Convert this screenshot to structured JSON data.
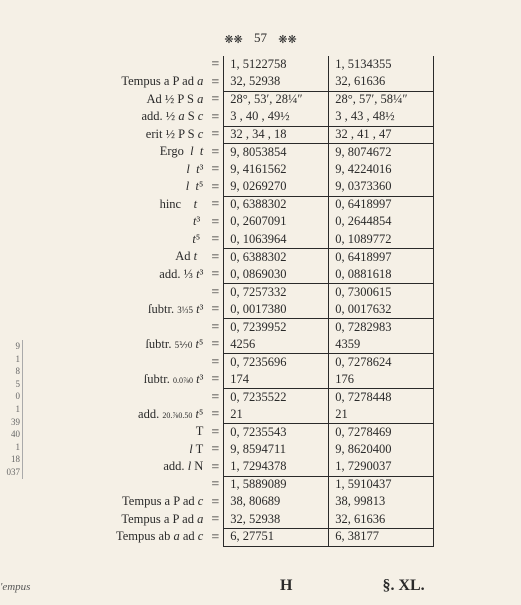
{
  "page_number": "57",
  "decoration": "❋❋",
  "rows": [
    {
      "cls": "",
      "label": "",
      "valA": "1, 5122758",
      "valB": "1, 5134355"
    },
    {
      "cls": "botsep",
      "label": "Tempus a P ad <span class='it'>a</span>",
      "valA": "32, 52938",
      "valB": "32, 61636"
    },
    {
      "cls": "",
      "label": "Ad ½ P S <span class='it'>a</span>",
      "valA": "28°, 53′, 28¼″",
      "valB": "28°, 57′, 58¼″"
    },
    {
      "cls": "botsep",
      "label": "add. ½ <span class='it'>a</span> S <span class='it'>c</span>",
      "valA": "3 , 40 , 49½",
      "valB": "3 , 43 , 48½"
    },
    {
      "cls": "botsep",
      "label": "erit ½ P S <span class='it'>c</span>",
      "valA": "32 , 34 , 18",
      "valB": "32 , 41 , 47"
    },
    {
      "cls": "",
      "label": "Ergo&nbsp;&nbsp;<span class='it'>l&nbsp;&nbsp;t</span>",
      "valA": "9, 8053854",
      "valB": "9, 8074672"
    },
    {
      "cls": "",
      "label": "<span class='it'>l&nbsp;&nbsp;t</span>³",
      "valA": "9, 4161562",
      "valB": "9, 4224016"
    },
    {
      "cls": "botsep",
      "label": "<span class='it'>l&nbsp;&nbsp;t</span>⁵",
      "valA": "9, 0269270",
      "valB": "9, 0373360"
    },
    {
      "cls": "",
      "label": "hinc&nbsp;&nbsp;&nbsp;&nbsp;<span class='it'>t</span>&nbsp;&nbsp;",
      "valA": "0, 6388302",
      "valB": "0, 6418997"
    },
    {
      "cls": "",
      "label": "<span class='it'>t</span>³&nbsp;",
      "valA": "0, 2607091",
      "valB": "0, 2644854"
    },
    {
      "cls": "botsep",
      "label": "<span class='it'>t</span>⁵&nbsp;",
      "valA": "0, 1063964",
      "valB": "0, 1089772"
    },
    {
      "cls": "",
      "label": "Ad <span class='it'>t</span>&nbsp;&nbsp;",
      "valA": "0, 6388302",
      "valB": "0, 6418997"
    },
    {
      "cls": "botsep",
      "label": "add. ⅓ <span class='it'>t</span>³",
      "valA": "0, 0869030",
      "valB": "0, 0881618"
    },
    {
      "cls": "",
      "label": "",
      "valA": "0, 7257332",
      "valB": "0, 7300615"
    },
    {
      "cls": "botsep",
      "label": "ſubtr. <span style='font-size:9px'>3⅓5</span> <span class='it'>t</span>³",
      "valA": "0, 0017380",
      "valB": "0, 0017632"
    },
    {
      "cls": "",
      "label": "",
      "valA": "0, 7239952",
      "valB": "0, 7282983"
    },
    {
      "cls": "botsep",
      "label": "ſubtr. <span style='font-size:9px'>5⅐0</span> <span class='it'>t</span>⁵",
      "valA": "4256",
      "valB": "4359"
    },
    {
      "cls": "",
      "label": "",
      "valA": "0, 7235696",
      "valB": "0, 7278624"
    },
    {
      "cls": "botsep",
      "label": "ſubtr. <span style='font-size:8px'>0.0⅞0</span> <span class='it'>t</span>³",
      "valA": "174",
      "valB": "176"
    },
    {
      "cls": "",
      "label": "",
      "valA": "0, 7235522",
      "valB": "0, 7278448"
    },
    {
      "cls": "botsep",
      "label": "add. <span style='font-size:8px'>20.⅞0.50</span> <span class='it'>t</span>⁵",
      "valA": "21",
      "valB": "21"
    },
    {
      "cls": "",
      "label": "T",
      "valA": "0, 7235543",
      "valB": "0, 7278469"
    },
    {
      "cls": "",
      "label": "<span class='it'>l</span> T",
      "valA": "9, 8594711",
      "valB": "9, 8620400"
    },
    {
      "cls": "botsep",
      "label": "add. <span class='it'>l</span> N",
      "valA": "1, 7294378",
      "valB": "1, 7290037"
    },
    {
      "cls": "",
      "label": "",
      "valA": "1, 5889089",
      "valB": "1, 5910437"
    },
    {
      "cls": "",
      "label": "Tempus a P ad <span class='it'>c</span>",
      "valA": "38, 80689",
      "valB": "38, 99813"
    },
    {
      "cls": "botsep",
      "label": "Tempus a P ad <span class='it'>a</span>",
      "valA": "32, 52938",
      "valB": "32, 61636"
    },
    {
      "cls": "botsep",
      "label": "Tempus ab <span class='it'>a</span> ad <span class='it'>c</span>",
      "valA": "6, 27751",
      "valB": "6, 38177"
    }
  ],
  "footer_sig": "H",
  "footer_sec": "§.  XL.",
  "margin_word": "'empus",
  "margin_nums": [
    "9",
    "1",
    "8",
    "5",
    "0",
    "1",
    "39",
    "40",
    "1",
    "18",
    "037"
  ]
}
